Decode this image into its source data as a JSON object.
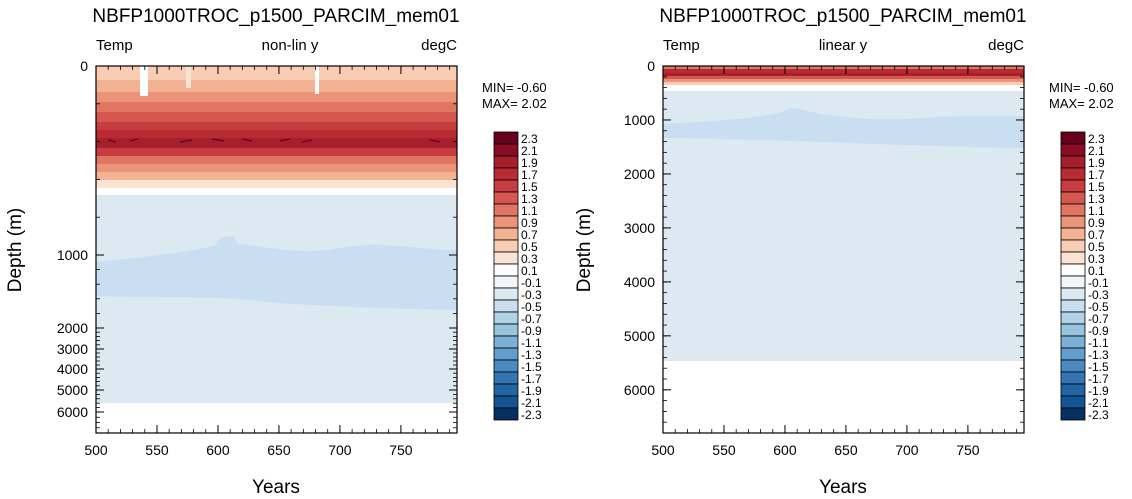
{
  "chart_data": [
    {
      "type": "heatmap",
      "title": "NBFP1000TROC_p1500_PARCIM_mem01",
      "header_left": "Temp",
      "header_center": "non-lin y",
      "header_right": "degC",
      "xlabel": "Years",
      "ylabel": "Depth (m)",
      "xlim": [
        500,
        796
      ],
      "xticks": [
        500,
        550,
        600,
        650,
        700,
        750
      ],
      "ylim": [
        0,
        6800
      ],
      "y_scale": "non-linear (stretched upper ocean)",
      "y_inverted": true,
      "yticks": [
        0,
        1000,
        2000,
        3000,
        4000,
        5000,
        6000
      ],
      "stats": {
        "min_text": "MIN= -0.60",
        "max_text": "MAX=  2.02"
      },
      "profile": [
        {
          "depth": 0,
          "value": 0.5
        },
        {
          "depth": 50,
          "value": 0.7
        },
        {
          "depth": 100,
          "value": 0.9
        },
        {
          "depth": 150,
          "value": 1.1
        },
        {
          "depth": 200,
          "value": 1.5
        },
        {
          "depth": 250,
          "value": 1.9
        },
        {
          "depth": 300,
          "value": 2.0
        },
        {
          "depth": 350,
          "value": 1.6
        },
        {
          "depth": 400,
          "value": 1.2
        },
        {
          "depth": 450,
          "value": 0.8
        },
        {
          "depth": 500,
          "value": 0.4
        },
        {
          "depth": 550,
          "value": 0.1
        },
        {
          "depth": 600,
          "value": -0.2
        },
        {
          "depth": 1000,
          "value": -0.4
        },
        {
          "depth": 1400,
          "value": -0.6
        },
        {
          "depth": 2000,
          "value": -0.2
        },
        {
          "depth": 5500,
          "value": -0.2
        }
      ]
    },
    {
      "type": "heatmap",
      "title": "NBFP1000TROC_p1500_PARCIM_mem01",
      "header_left": "Temp",
      "header_center": "linear y",
      "header_right": "degC",
      "xlabel": "Years",
      "ylabel": "Depth (m)",
      "xlim": [
        500,
        796
      ],
      "xticks": [
        500,
        550,
        600,
        650,
        700,
        750
      ],
      "ylim": [
        0,
        6800
      ],
      "y_scale": "linear",
      "y_inverted": true,
      "yticks": [
        0,
        1000,
        2000,
        3000,
        4000,
        5000,
        6000
      ],
      "stats": {
        "min_text": "MIN= -0.60",
        "max_text": "MAX=  2.02"
      },
      "profile": [
        {
          "depth": 0,
          "value": 0.5
        },
        {
          "depth": 100,
          "value": 1.5
        },
        {
          "depth": 200,
          "value": 1.1
        },
        {
          "depth": 300,
          "value": 0.5
        },
        {
          "depth": 500,
          "value": -0.2
        },
        {
          "depth": 1000,
          "value": -0.4
        },
        {
          "depth": 1500,
          "value": -0.4
        },
        {
          "depth": 5500,
          "value": -0.2
        }
      ]
    }
  ],
  "colorbar": {
    "labels": [
      "2.3",
      "2.1",
      "1.9",
      "1.7",
      "1.5",
      "1.3",
      "1.1",
      "0.9",
      "0.7",
      "0.5",
      "0.3",
      "0.1",
      "-0.1",
      "-0.3",
      "-0.5",
      "-0.7",
      "-0.9",
      "-1.1",
      "-1.3",
      "-1.5",
      "-1.7",
      "-1.9",
      "-2.1",
      "-2.3"
    ],
    "colors": [
      "#67001f",
      "#8a0b25",
      "#a61f2c",
      "#b92b33",
      "#c63c3f",
      "#d45850",
      "#e07563",
      "#eb9477",
      "#f3b294",
      "#f8cdb4",
      "#fbe3d4",
      "#ffffff",
      "#f1f5f8",
      "#dde9f1",
      "#c9def0",
      "#b2d2e7",
      "#97c4df",
      "#7cb1d5",
      "#619ecd",
      "#4a8ac1",
      "#3575b3",
      "#2265a5",
      "#135492",
      "#053061"
    ]
  }
}
